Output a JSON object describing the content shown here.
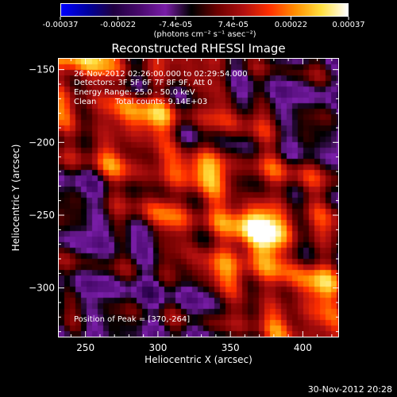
{
  "colorbar": {
    "tick_labels": [
      "-0.00037",
      "-0.00022",
      "-7.4e-05",
      "7.4e-05",
      "0.00022",
      "0.00037"
    ],
    "unit_label": "(photons cm⁻² s⁻¹ asec⁻²)",
    "colors": [
      "#0000ff",
      "#0000a0",
      "#200040",
      "#4a0a6e",
      "#7a1ea8",
      "#000000",
      "#6e0000",
      "#b01010",
      "#ff3000",
      "#ff9000",
      "#ffe040",
      "#ffffff"
    ]
  },
  "chart_data": {
    "type": "heatmap",
    "title": "Reconstructed RHESSI Image",
    "xlabel": "Heliocentric X (arcsec)",
    "ylabel": "Heliocentric Y (arcsec)",
    "xlim": [
      231,
      425
    ],
    "ylim": [
      -334,
      -142
    ],
    "xticks": [
      250,
      300,
      350,
      400
    ],
    "yticks": [
      -150,
      -200,
      -250,
      -300
    ],
    "colorbar_range": [
      -0.00037,
      0.00037
    ],
    "peak": [
      370,
      -264
    ],
    "annotations": {
      "time_range": "26-Nov-2012 02:26:00.000 to 02:29:54.000",
      "detectors": "Detectors: 3F 5F 6F 7F 8F 9F, Att 0",
      "energy": "Energy Range: 25.0 - 50.0 keV",
      "clean_label": "Clean",
      "counts": "Total counts: 9.14E+03",
      "peak_text": "Position of Peak = [370,-264]"
    }
  },
  "footer": {
    "date": "30-Nov-2012 20:28"
  }
}
